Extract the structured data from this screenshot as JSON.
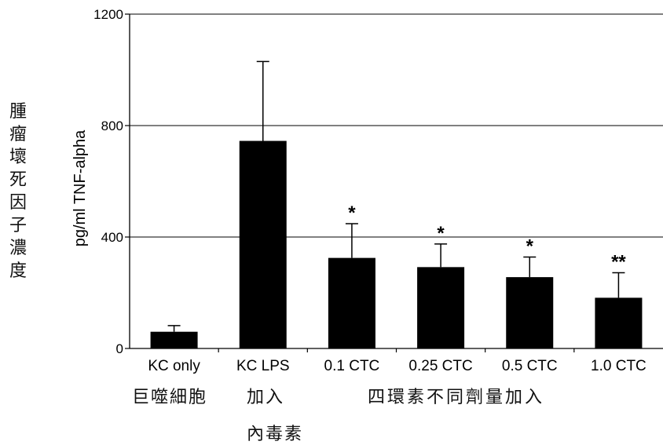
{
  "chart_data": {
    "type": "bar",
    "categories": [
      "KC only",
      "KC LPS",
      "0.1 CTC",
      "0.25 CTC",
      "0.5 CTC",
      "1.0 CTC"
    ],
    "values": [
      60,
      745,
      325,
      292,
      256,
      182
    ],
    "error_upper": [
      82,
      1030,
      448,
      375,
      328,
      272
    ],
    "significance": [
      "",
      "",
      "*",
      "*",
      "*",
      "**"
    ],
    "ylabel": "pg/ml TNF-alpha",
    "ylim": [
      0,
      1200
    ],
    "yticks": [
      0,
      400,
      800,
      1200
    ],
    "grid": true,
    "bar_color": "#000000"
  },
  "annotations": {
    "y_title_vertical": "腫瘤壞死因子濃度",
    "group_macrophage": "巨噬細胞",
    "group_add": "加入",
    "group_endotoxin": "內毒素",
    "group_tetracycline": "四環素不同劑量加入"
  }
}
